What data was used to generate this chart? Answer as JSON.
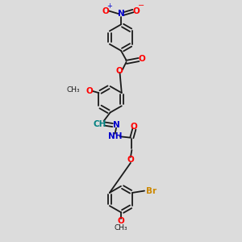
{
  "bg_color": "#dcdcdc",
  "figsize": [
    3.0,
    3.0
  ],
  "dpi": 100,
  "bond_color": "#1a1a1a",
  "atom_colors": {
    "O": "#ff0000",
    "N": "#0000cc",
    "Br": "#cc8800",
    "C": "#1a1a1a",
    "H": "#008080"
  },
  "lw": 1.3,
  "fs": 7.5,
  "fs_small": 6.5,
  "ring_r": 0.055,
  "xlim": [
    0.0,
    1.0
  ],
  "ylim": [
    0.0,
    1.0
  ]
}
